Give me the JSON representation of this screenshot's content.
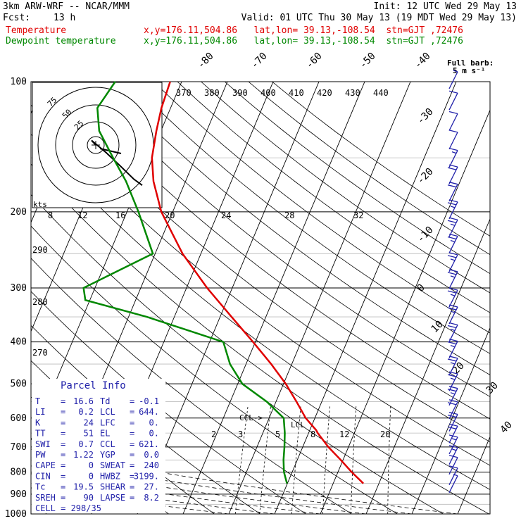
{
  "header": {
    "model": "3km ARW-WRF -- NCAR/MMM",
    "init": "Init: 12 UTC Wed 29 May 13",
    "fcst_label": "Fcst:",
    "fcst_value": "13 h",
    "valid": "Valid: 01 UTC Thu 30 May 13 (19 MDT Wed 29 May 13)"
  },
  "legend": [
    {
      "name": "Temperature",
      "location": "x,y=176.11,504.86   lat,lon= 39.13,-108.54  stn=GJT ,72476",
      "color": "#e00000"
    },
    {
      "name": "Dewpoint temperature",
      "location": "x,y=176.11,504.86   lat,lon= 39.13,-108.54  stn=GJT ,72476",
      "color": "#008800"
    }
  ],
  "full_barb_label": [
    "Full barb:",
    "5 m s⁻¹"
  ],
  "hodograph_axis_label": "kts",
  "parcel_info": {
    "title": "Parcel Info",
    "rows": [
      [
        "T",
        "16.6",
        "Td",
        "-0.1"
      ],
      [
        "LI",
        "0.2",
        "LCL",
        "644."
      ],
      [
        "K",
        "24",
        "LFC",
        "0."
      ],
      [
        "TT",
        "51",
        "EL",
        "0."
      ],
      [
        "SWI",
        "0.7",
        "CCL",
        "621."
      ],
      [
        "PW",
        "1.22",
        "YGP",
        "0.0"
      ],
      [
        "CAPE",
        "0",
        "SWEAT",
        "240"
      ],
      [
        "CIN",
        "0",
        "HWBZ",
        "3199."
      ],
      [
        "Tc",
        "19.5",
        "SHEAR",
        "27."
      ],
      [
        "SREH",
        "90",
        "LAPSE",
        "8.2"
      ]
    ],
    "cell": "CELL = 298/35"
  },
  "chart_data": {
    "type": "line",
    "xlabel": "",
    "ylabel": "",
    "y_scale": "log",
    "ylim": [
      1000,
      100
    ],
    "xlim": [
      -40,
      40
    ],
    "pressure_ticks": [
      100,
      200,
      300,
      400,
      500,
      600,
      700,
      800,
      900,
      1000
    ],
    "isotherm_labels": [
      -80,
      -70,
      -60,
      -50,
      -40,
      -30,
      -20,
      -10,
      0,
      10,
      20,
      30,
      40
    ],
    "theta_labels": [
      370,
      380,
      390,
      400,
      410,
      420,
      430,
      440
    ],
    "theta_side_labels": [
      290,
      280,
      270
    ],
    "mixing_ratio_labels": [
      2,
      3,
      5,
      8,
      12,
      20
    ],
    "hodograph_speed_labels": [
      8,
      12,
      16,
      20,
      24,
      28,
      32
    ],
    "hodograph_ring_labels": [
      75,
      50,
      25
    ],
    "annotations": [
      "CCL->",
      "LCL"
    ],
    "series": [
      {
        "name": "Temperature",
        "color": "#e00000",
        "points": [
          [
            850,
            16.6
          ],
          [
            800,
            13
          ],
          [
            750,
            9.5
          ],
          [
            700,
            5.6
          ],
          [
            650,
            2
          ],
          [
            640,
            1.4
          ],
          [
            600,
            -2
          ],
          [
            550,
            -5.5
          ],
          [
            500,
            -9.5
          ],
          [
            450,
            -14.5
          ],
          [
            400,
            -20.5
          ],
          [
            350,
            -27.5
          ],
          [
            300,
            -35.5
          ],
          [
            250,
            -44
          ],
          [
            200,
            -52.5
          ],
          [
            170,
            -57
          ],
          [
            150,
            -59.5
          ],
          [
            130,
            -61
          ],
          [
            115,
            -62
          ],
          [
            100,
            -62.5
          ]
        ]
      },
      {
        "name": "Dewpoint temperature",
        "color": "#008800",
        "points": [
          [
            850,
            -0.1
          ],
          [
            800,
            -1.8
          ],
          [
            750,
            -3
          ],
          [
            700,
            -4
          ],
          [
            650,
            -5.2
          ],
          [
            600,
            -6.8
          ],
          [
            550,
            -12
          ],
          [
            500,
            -19
          ],
          [
            450,
            -23.5
          ],
          [
            400,
            -27
          ],
          [
            350,
            -46
          ],
          [
            320,
            -61
          ],
          [
            300,
            -62.5
          ],
          [
            280,
            -58
          ],
          [
            250,
            -50.5
          ],
          [
            200,
            -57.5
          ],
          [
            170,
            -63
          ],
          [
            150,
            -68
          ],
          [
            130,
            -73.5
          ],
          [
            115,
            -76
          ],
          [
            100,
            -74.5
          ]
        ]
      }
    ],
    "wind_barbs": [
      {
        "p": 860,
        "speed_kt": 5,
        "dir": 200
      },
      {
        "p": 825,
        "speed_kt": 10,
        "dir": 220
      },
      {
        "p": 780,
        "speed_kt": 10,
        "dir": 230
      },
      {
        "p": 740,
        "speed_kt": 15,
        "dir": 240
      },
      {
        "p": 700,
        "speed_kt": 15,
        "dir": 245
      },
      {
        "p": 660,
        "speed_kt": 20,
        "dir": 250
      },
      {
        "p": 620,
        "speed_kt": 20,
        "dir": 250
      },
      {
        "p": 580,
        "speed_kt": 20,
        "dir": 250
      },
      {
        "p": 540,
        "speed_kt": 25,
        "dir": 250
      },
      {
        "p": 500,
        "speed_kt": 25,
        "dir": 250
      },
      {
        "p": 460,
        "speed_kt": 25,
        "dir": 250
      },
      {
        "p": 420,
        "speed_kt": 25,
        "dir": 250
      },
      {
        "p": 385,
        "speed_kt": 25,
        "dir": 250
      },
      {
        "p": 350,
        "speed_kt": 25,
        "dir": 250
      },
      {
        "p": 320,
        "speed_kt": 25,
        "dir": 250
      },
      {
        "p": 290,
        "speed_kt": 25,
        "dir": 250
      },
      {
        "p": 265,
        "speed_kt": 25,
        "dir": 250
      },
      {
        "p": 240,
        "speed_kt": 25,
        "dir": 250
      },
      {
        "p": 220,
        "speed_kt": 25,
        "dir": 250
      },
      {
        "p": 200,
        "speed_kt": 25,
        "dir": 250
      },
      {
        "p": 182,
        "speed_kt": 20,
        "dir": 250
      },
      {
        "p": 166,
        "speed_kt": 20,
        "dir": 250
      },
      {
        "p": 152,
        "speed_kt": 15,
        "dir": 250
      },
      {
        "p": 138,
        "speed_kt": 10,
        "dir": 250
      },
      {
        "p": 125,
        "speed_kt": 10,
        "dir": 250
      },
      {
        "p": 112,
        "speed_kt": 10,
        "dir": 250
      },
      {
        "p": 100,
        "speed_kt": 5,
        "dir": 250
      }
    ],
    "hodograph_trace": [
      [
        0,
        0
      ],
      [
        -2,
        3
      ],
      [
        5,
        -5
      ],
      [
        12,
        -14
      ],
      [
        18,
        -22
      ],
      [
        22,
        -26
      ]
    ],
    "colors": {
      "temperature": "#e00000",
      "dewpoint": "#008800",
      "barbs": "#2222aa",
      "isotherm": "#000000"
    }
  }
}
